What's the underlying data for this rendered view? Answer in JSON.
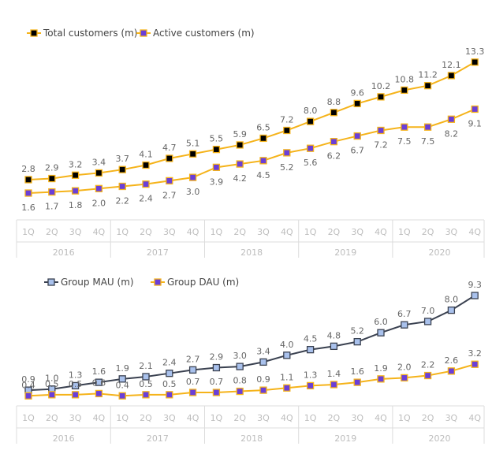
{
  "chart_data": [
    {
      "type": "line",
      "categories": [
        "1Q",
        "2Q",
        "3Q",
        "4Q",
        "1Q",
        "2Q",
        "3Q",
        "4Q",
        "1Q",
        "2Q",
        "3Q",
        "4Q",
        "1Q",
        "2Q",
        "3Q",
        "4Q",
        "1Q",
        "2Q",
        "3Q",
        "4Q"
      ],
      "groups": [
        "2016",
        "2017",
        "2018",
        "2019",
        "2020"
      ],
      "legend_position": "top-left",
      "series": [
        {
          "name": "Total customers (m)",
          "color": "#F5B31A",
          "marker_fill": "#000000",
          "values": [
            2.8,
            2.9,
            3.2,
            3.4,
            3.7,
            4.1,
            4.7,
            5.1,
            5.5,
            5.9,
            6.5,
            7.2,
            8.0,
            8.8,
            9.6,
            10.2,
            10.8,
            11.2,
            12.1,
            13.3
          ]
        },
        {
          "name": "Active customers (m)",
          "color": "#F5B31A",
          "marker_fill": "#6A3FD8",
          "values": [
            1.6,
            1.7,
            1.8,
            2.0,
            2.2,
            2.4,
            2.7,
            3.0,
            3.9,
            4.2,
            4.5,
            5.2,
            5.6,
            6.2,
            6.7,
            7.2,
            7.5,
            7.5,
            8.2,
            9.1
          ]
        }
      ]
    },
    {
      "type": "line",
      "categories": [
        "1Q",
        "2Q",
        "3Q",
        "4Q",
        "1Q",
        "2Q",
        "3Q",
        "4Q",
        "1Q",
        "2Q",
        "3Q",
        "4Q",
        "1Q",
        "2Q",
        "3Q",
        "4Q",
        "1Q",
        "2Q",
        "3Q",
        "4Q"
      ],
      "groups": [
        "2016",
        "2017",
        "2018",
        "2019",
        "2020"
      ],
      "legend_position": "top-left",
      "series": [
        {
          "name": "Group MAU (m)",
          "color": "#3A4150",
          "marker_fill": "#A9C1EC",
          "values": [
            0.9,
            1.0,
            1.3,
            1.6,
            1.9,
            2.1,
            2.4,
            2.7,
            2.9,
            3.0,
            3.4,
            4.0,
            4.5,
            4.8,
            5.2,
            6.0,
            6.7,
            7.0,
            8.0,
            9.3
          ]
        },
        {
          "name": "Group DAU (m)",
          "color": "#F5B31A",
          "marker_fill": "#6A3FD8",
          "values": [
            0.4,
            0.5,
            0.5,
            0.6,
            0.4,
            0.5,
            0.5,
            0.7,
            0.7,
            0.8,
            0.9,
            1.1,
            1.3,
            1.4,
            1.6,
            1.9,
            2.0,
            2.2,
            2.6,
            3.2
          ]
        }
      ]
    }
  ]
}
